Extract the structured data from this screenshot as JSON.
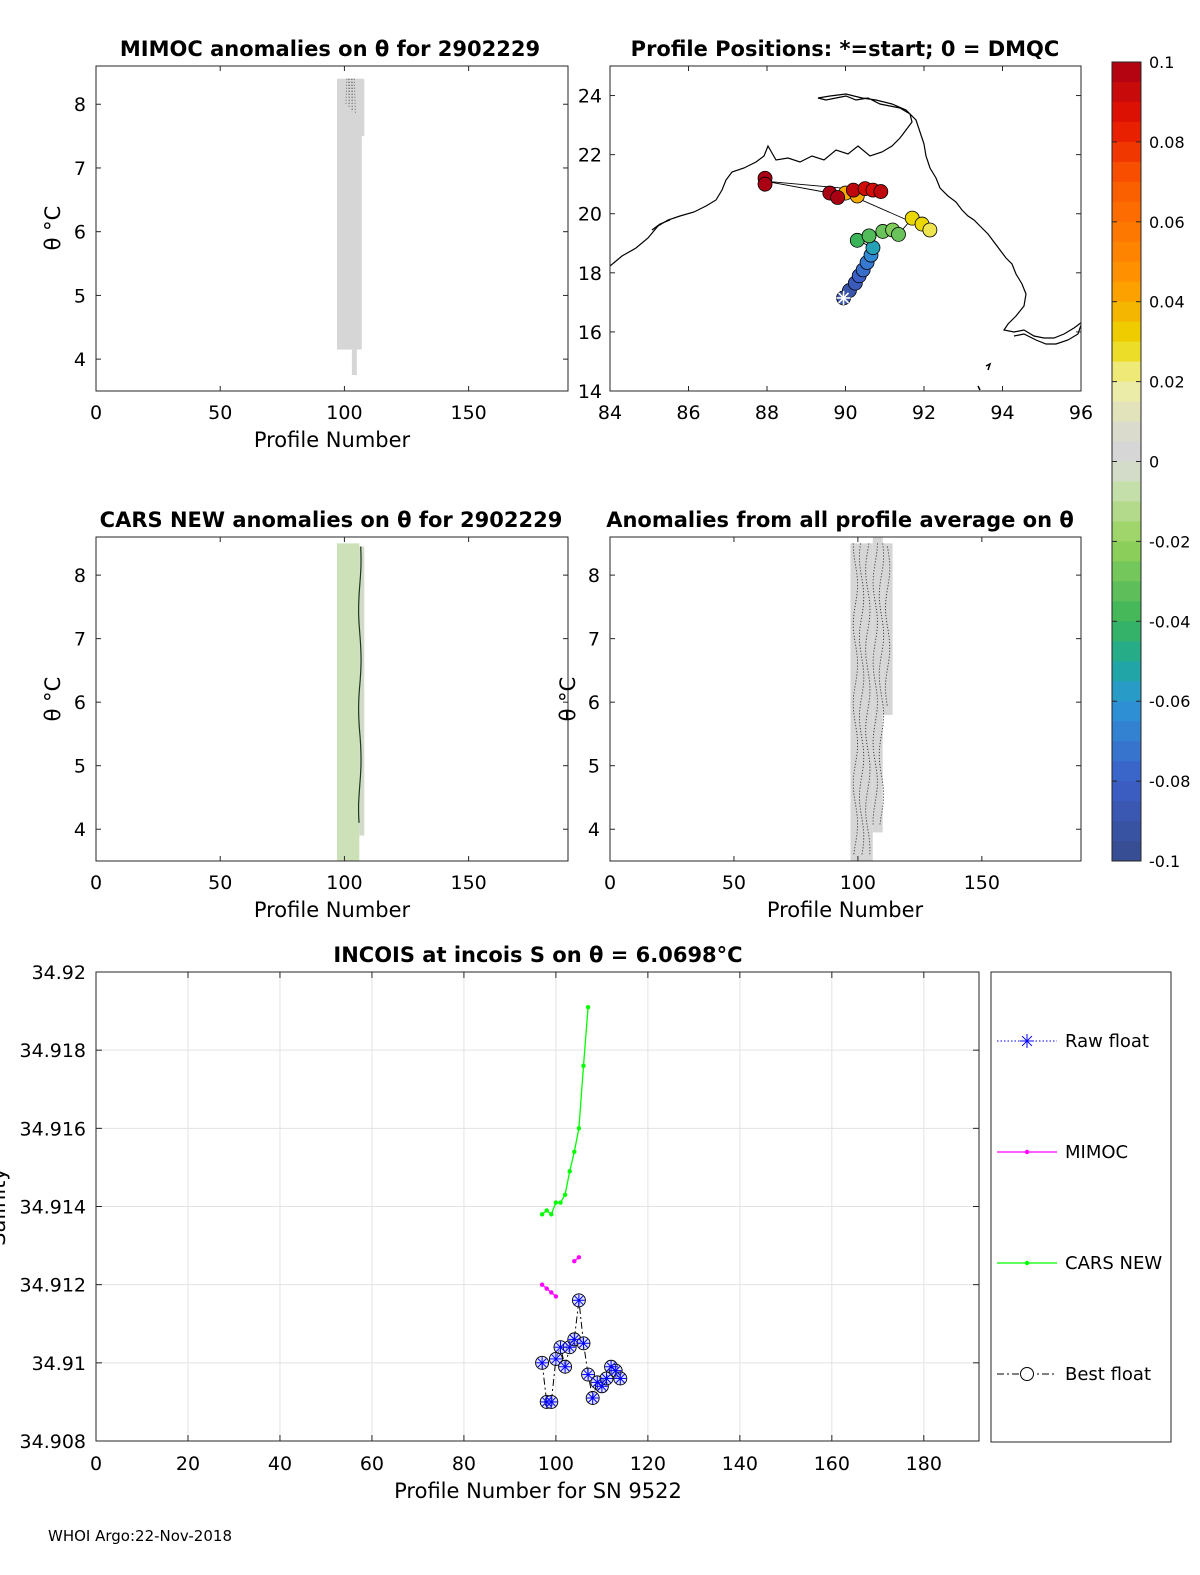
{
  "chart_data": [
    {
      "id": "mimoc",
      "type": "heatmap",
      "title": "MIMOC anomalies on θ  for 2902229",
      "xlabel": "Profile Number",
      "ylabel": "θ °C",
      "xlim": [
        0,
        190
      ],
      "ylim": [
        3.5,
        8.6
      ],
      "xticks": [
        0,
        50,
        100,
        150
      ],
      "yticks": [
        4,
        5,
        6,
        7,
        8
      ],
      "cells": [
        {
          "x0": 97,
          "x1": 107,
          "y0": 4.15,
          "y1": 8.4,
          "value": 0.0
        },
        {
          "x0": 104,
          "x1": 108,
          "y0": 7.5,
          "y1": 8.4,
          "value": 0.0
        },
        {
          "x0": 103,
          "x1": 105,
          "y0": 3.75,
          "y1": 4.15,
          "value": 0.0
        }
      ]
    },
    {
      "id": "positions",
      "type": "scatter",
      "title": "Profile Positions: *=start; 0 = DMQC",
      "xlim": [
        84,
        96
      ],
      "ylim": [
        14,
        25
      ],
      "xticks": [
        84,
        86,
        88,
        90,
        92,
        94,
        96
      ],
      "yticks": [
        14,
        16,
        18,
        20,
        22,
        24
      ],
      "start": {
        "lon": 89.95,
        "lat": 17.15
      },
      "points": [
        {
          "lon": 89.95,
          "lat": 17.15,
          "value": -0.09
        },
        {
          "lon": 90.1,
          "lat": 17.4,
          "value": -0.09
        },
        {
          "lon": 90.25,
          "lat": 17.65,
          "value": -0.085
        },
        {
          "lon": 90.35,
          "lat": 17.9,
          "value": -0.08
        },
        {
          "lon": 90.45,
          "lat": 18.1,
          "value": -0.075
        },
        {
          "lon": 90.55,
          "lat": 18.35,
          "value": -0.07
        },
        {
          "lon": 90.65,
          "lat": 18.6,
          "value": -0.065
        },
        {
          "lon": 90.7,
          "lat": 18.85,
          "value": -0.055
        },
        {
          "lon": 90.3,
          "lat": 19.1,
          "value": -0.04
        },
        {
          "lon": 90.6,
          "lat": 19.25,
          "value": -0.035
        },
        {
          "lon": 90.95,
          "lat": 19.4,
          "value": -0.03
        },
        {
          "lon": 91.2,
          "lat": 19.45,
          "value": -0.025
        },
        {
          "lon": 91.35,
          "lat": 19.3,
          "value": -0.03
        },
        {
          "lon": 91.7,
          "lat": 19.85,
          "value": 0.03
        },
        {
          "lon": 91.95,
          "lat": 19.65,
          "value": 0.03
        },
        {
          "lon": 92.15,
          "lat": 19.45,
          "value": 0.025
        },
        {
          "lon": 90.0,
          "lat": 20.7,
          "value": 0.04
        },
        {
          "lon": 90.3,
          "lat": 20.6,
          "value": 0.04
        },
        {
          "lon": 89.6,
          "lat": 20.7,
          "value": 0.1
        },
        {
          "lon": 89.8,
          "lat": 20.55,
          "value": 0.1
        },
        {
          "lon": 90.2,
          "lat": 20.8,
          "value": 0.095
        },
        {
          "lon": 90.5,
          "lat": 20.85,
          "value": 0.09
        },
        {
          "lon": 90.7,
          "lat": 20.8,
          "value": 0.09
        },
        {
          "lon": 90.9,
          "lat": 20.75,
          "value": 0.095
        },
        {
          "lon": 87.95,
          "lat": 21.2,
          "value": 0.1
        },
        {
          "lon": 87.95,
          "lat": 21.0,
          "value": 0.1
        }
      ],
      "track": [
        [
          89.95,
          17.15
        ],
        [
          90.35,
          17.9
        ],
        [
          90.7,
          18.85
        ],
        [
          90.3,
          19.1
        ],
        [
          91.2,
          19.45
        ],
        [
          91.35,
          19.3
        ],
        [
          91.7,
          19.85
        ],
        [
          92.15,
          19.45
        ],
        [
          90.0,
          20.7
        ],
        [
          89.6,
          20.7
        ],
        [
          87.95,
          21.1
        ],
        [
          90.9,
          20.75
        ]
      ]
    },
    {
      "id": "cars",
      "type": "heatmap",
      "title": "CARS NEW anomalies on θ for 2902229",
      "xlabel": "Profile Number",
      "ylabel": "θ °C",
      "xlim": [
        0,
        190
      ],
      "ylim": [
        3.5,
        8.6
      ],
      "xticks": [
        0,
        50,
        100,
        150
      ],
      "yticks": [
        4,
        5,
        6,
        7,
        8
      ],
      "cells": [
        {
          "x0": 97,
          "x1": 106,
          "y0": 3.5,
          "y1": 8.5,
          "value": -0.005
        },
        {
          "x0": 106,
          "x1": 108,
          "y0": 3.9,
          "y1": 8.45,
          "value": -0.002
        }
      ]
    },
    {
      "id": "allavg",
      "type": "heatmap",
      "title": "Anomalies from all profile average on θ",
      "xlabel": "Profile Number",
      "ylabel": "θ °C",
      "xlim": [
        0,
        190
      ],
      "ylim": [
        3.5,
        8.6
      ],
      "xticks": [
        0,
        50,
        100,
        150
      ],
      "yticks": [
        4,
        5,
        6,
        7,
        8
      ],
      "cells": [
        {
          "x0": 97,
          "x1": 106,
          "y0": 3.5,
          "y1": 8.5,
          "value": 0.0
        },
        {
          "x0": 106,
          "x1": 110,
          "y0": 3.95,
          "y1": 8.6,
          "value": 0.0
        },
        {
          "x0": 110,
          "x1": 114,
          "y0": 5.8,
          "y1": 8.5,
          "value": 0.0
        }
      ]
    },
    {
      "id": "incois",
      "type": "line",
      "title": "INCOIS at incois S on θ = 6.0698°C",
      "xlabel": "Profile Number for SN 9522",
      "ylabel": "Salinity",
      "xlim": [
        0,
        192
      ],
      "ylim": [
        34.908,
        34.92
      ],
      "xticks": [
        0,
        20,
        40,
        60,
        80,
        100,
        120,
        140,
        160,
        180
      ],
      "yticks": [
        34.908,
        34.91,
        34.912,
        34.914,
        34.916,
        34.918,
        34.92
      ],
      "grid": true,
      "legend_position": "right",
      "series": [
        {
          "name": "Raw float",
          "color": "#0000ff",
          "x": [
            97,
            98,
            99,
            100,
            101,
            102,
            103,
            104,
            105,
            106,
            107,
            108,
            109,
            110,
            111,
            112,
            113,
            114
          ],
          "y": [
            34.91,
            34.909,
            34.909,
            34.9101,
            34.9104,
            34.9099,
            34.9104,
            34.9106,
            34.9116,
            34.9105,
            34.9097,
            34.9091,
            34.9095,
            34.9094,
            34.9096,
            34.9099,
            34.9098,
            34.9096
          ]
        },
        {
          "name": "MIMOC",
          "color": "#ff00ff",
          "x": [
            97,
            98,
            99,
            100,
            104,
            105
          ],
          "y": [
            34.912,
            34.9119,
            34.9118,
            34.9117,
            34.9126,
            34.9127
          ]
        },
        {
          "name": "CARS NEW",
          "color": "#00ff00",
          "x": [
            97,
            98,
            99,
            100,
            101,
            102,
            103,
            104,
            105,
            106,
            107
          ],
          "y": [
            34.9138,
            34.9139,
            34.9138,
            34.9141,
            34.9141,
            34.9143,
            34.9149,
            34.9154,
            34.916,
            34.9176,
            34.9191
          ]
        },
        {
          "name": "Best float",
          "color": "#000000",
          "x": [
            97,
            98,
            99,
            100,
            101,
            102,
            103,
            104,
            105,
            106,
            107,
            108,
            109,
            110,
            111,
            112,
            113,
            114
          ],
          "y": [
            34.91,
            34.909,
            34.909,
            34.9101,
            34.9104,
            34.9099,
            34.9104,
            34.9106,
            34.9116,
            34.9105,
            34.9097,
            34.9091,
            34.9095,
            34.9094,
            34.9096,
            34.9099,
            34.9098,
            34.9096
          ]
        }
      ]
    }
  ],
  "colorbar": {
    "range": [
      -0.1,
      0.1
    ],
    "ticks": [
      "0.1",
      "0.08",
      "0.06",
      "0.04",
      "0.02",
      "0",
      "-0.02",
      "-0.04",
      "-0.06",
      "-0.08",
      "-0.1"
    ]
  },
  "footer": "WHOI Argo:22-Nov-2018"
}
